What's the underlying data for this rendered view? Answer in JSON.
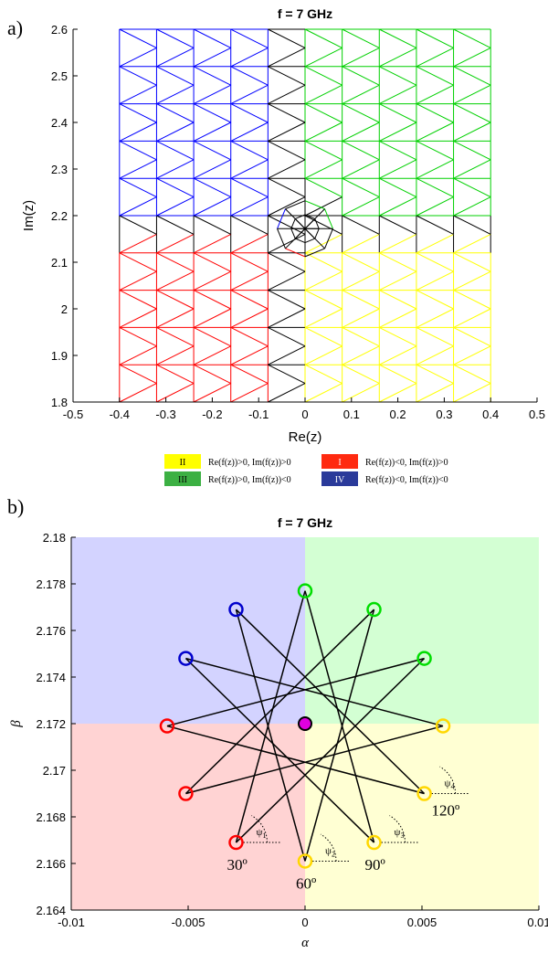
{
  "chart_data": [
    {
      "panel_label": "a)",
      "type": "triangular-mesh",
      "title": "f = 7 GHz",
      "xlabel": "Re(z)",
      "ylabel": "Im(z)",
      "xlim": [
        -0.5,
        0.5
      ],
      "ylim": [
        1.8,
        2.6
      ],
      "xticks": [
        "-0.5",
        "-0.4",
        "-0.3",
        "-0.2",
        "-0.1",
        "0",
        "0.1",
        "0.2",
        "0.3",
        "0.4",
        "0.5"
      ],
      "yticks": [
        "1.8",
        "1.9",
        "2",
        "2.1",
        "2.2",
        "2.3",
        "2.4",
        "2.5",
        "2.6"
      ],
      "domain": {
        "x": [
          -0.4,
          0.4
        ],
        "y": [
          1.8,
          2.6
        ]
      },
      "mesh_spacing": 0.08,
      "refined_point": {
        "x": 0.0,
        "y": 2.172
      },
      "grid": false,
      "legend": {
        "placement": "below",
        "entries": [
          {
            "key": "II",
            "text": "Re(f(z))>0, Im(f(z))>0",
            "color": "#ffff00"
          },
          {
            "key": "I",
            "text": "Re(f(z))<0, Im(f(z))>0",
            "color": "#ff0000"
          },
          {
            "key": "III",
            "text": "Re(f(z))>0, Im(f(z))<0",
            "color": "#00c000"
          },
          {
            "key": "IV",
            "text": "Re(f(z))<0, Im(f(z))<0",
            "color": "#1f2f9f"
          }
        ]
      },
      "colors": {
        "I": "#ff0000",
        "II": "#ffff00",
        "III": "#00d000",
        "IV": "#0000ff",
        "edge": "#000000"
      }
    },
    {
      "panel_label": "b)",
      "type": "scatter",
      "title": "f = 7 GHz",
      "xlabel": "α",
      "ylabel": "β",
      "xlim": [
        -0.01,
        0.01
      ],
      "ylim": [
        2.164,
        2.18
      ],
      "xticks": [
        "-0.01",
        "-0.005",
        "0",
        "0.005",
        "0.01"
      ],
      "yticks": [
        "2.164",
        "2.166",
        "2.168",
        "2.17",
        "2.172",
        "2.174",
        "2.176",
        "2.178",
        "2.18"
      ],
      "center": {
        "x": 0.0,
        "y": 2.172
      },
      "points": [
        {
          "x": 0.0,
          "y": 2.1661,
          "quadrant": "II"
        },
        {
          "x": 0.00295,
          "y": 2.1669,
          "quadrant": "II"
        },
        {
          "x": 0.0051,
          "y": 2.169,
          "quadrant": "II"
        },
        {
          "x": 0.0059,
          "y": 2.1719,
          "quadrant": "II"
        },
        {
          "x": 0.0051,
          "y": 2.1748,
          "quadrant": "III"
        },
        {
          "x": 0.00295,
          "y": 2.1769,
          "quadrant": "III"
        },
        {
          "x": 0.0,
          "y": 2.1777,
          "quadrant": "III"
        },
        {
          "x": -0.00295,
          "y": 2.1769,
          "quadrant": "IV"
        },
        {
          "x": -0.0051,
          "y": 2.1748,
          "quadrant": "IV"
        },
        {
          "x": -0.0059,
          "y": 2.1719,
          "quadrant": "I"
        },
        {
          "x": -0.0051,
          "y": 2.169,
          "quadrant": "I"
        },
        {
          "x": -0.00295,
          "y": 2.1669,
          "quadrant": "I"
        }
      ],
      "star_connections": [
        [
          0,
          5
        ],
        [
          5,
          10
        ],
        [
          10,
          3
        ],
        [
          3,
          8
        ],
        [
          8,
          1
        ],
        [
          1,
          6
        ],
        [
          6,
          11
        ],
        [
          11,
          4
        ],
        [
          4,
          9
        ],
        [
          9,
          2
        ],
        [
          2,
          7
        ],
        [
          7,
          0
        ]
      ],
      "angle_markers": [
        {
          "point": 11,
          "symbol": "ψ",
          "sub": "1",
          "label": "30º"
        },
        {
          "point": 0,
          "symbol": "ψ",
          "sub": "2",
          "label": "60º"
        },
        {
          "point": 1,
          "symbol": "ψ",
          "sub": "3",
          "label": "90º"
        },
        {
          "point": 2,
          "symbol": "ψ",
          "sub": "4",
          "label": "120º"
        }
      ],
      "background": {
        "I": "#ffd3d3",
        "II": "#ffffd3",
        "III": "#d3ffd3",
        "IV": "#d3d3ff"
      },
      "marker_colors": {
        "I": "#ff0000",
        "II": "#ffd700",
        "III": "#00dd00",
        "IV": "#0000cc",
        "center": "#e000e0"
      },
      "grid": false
    }
  ]
}
